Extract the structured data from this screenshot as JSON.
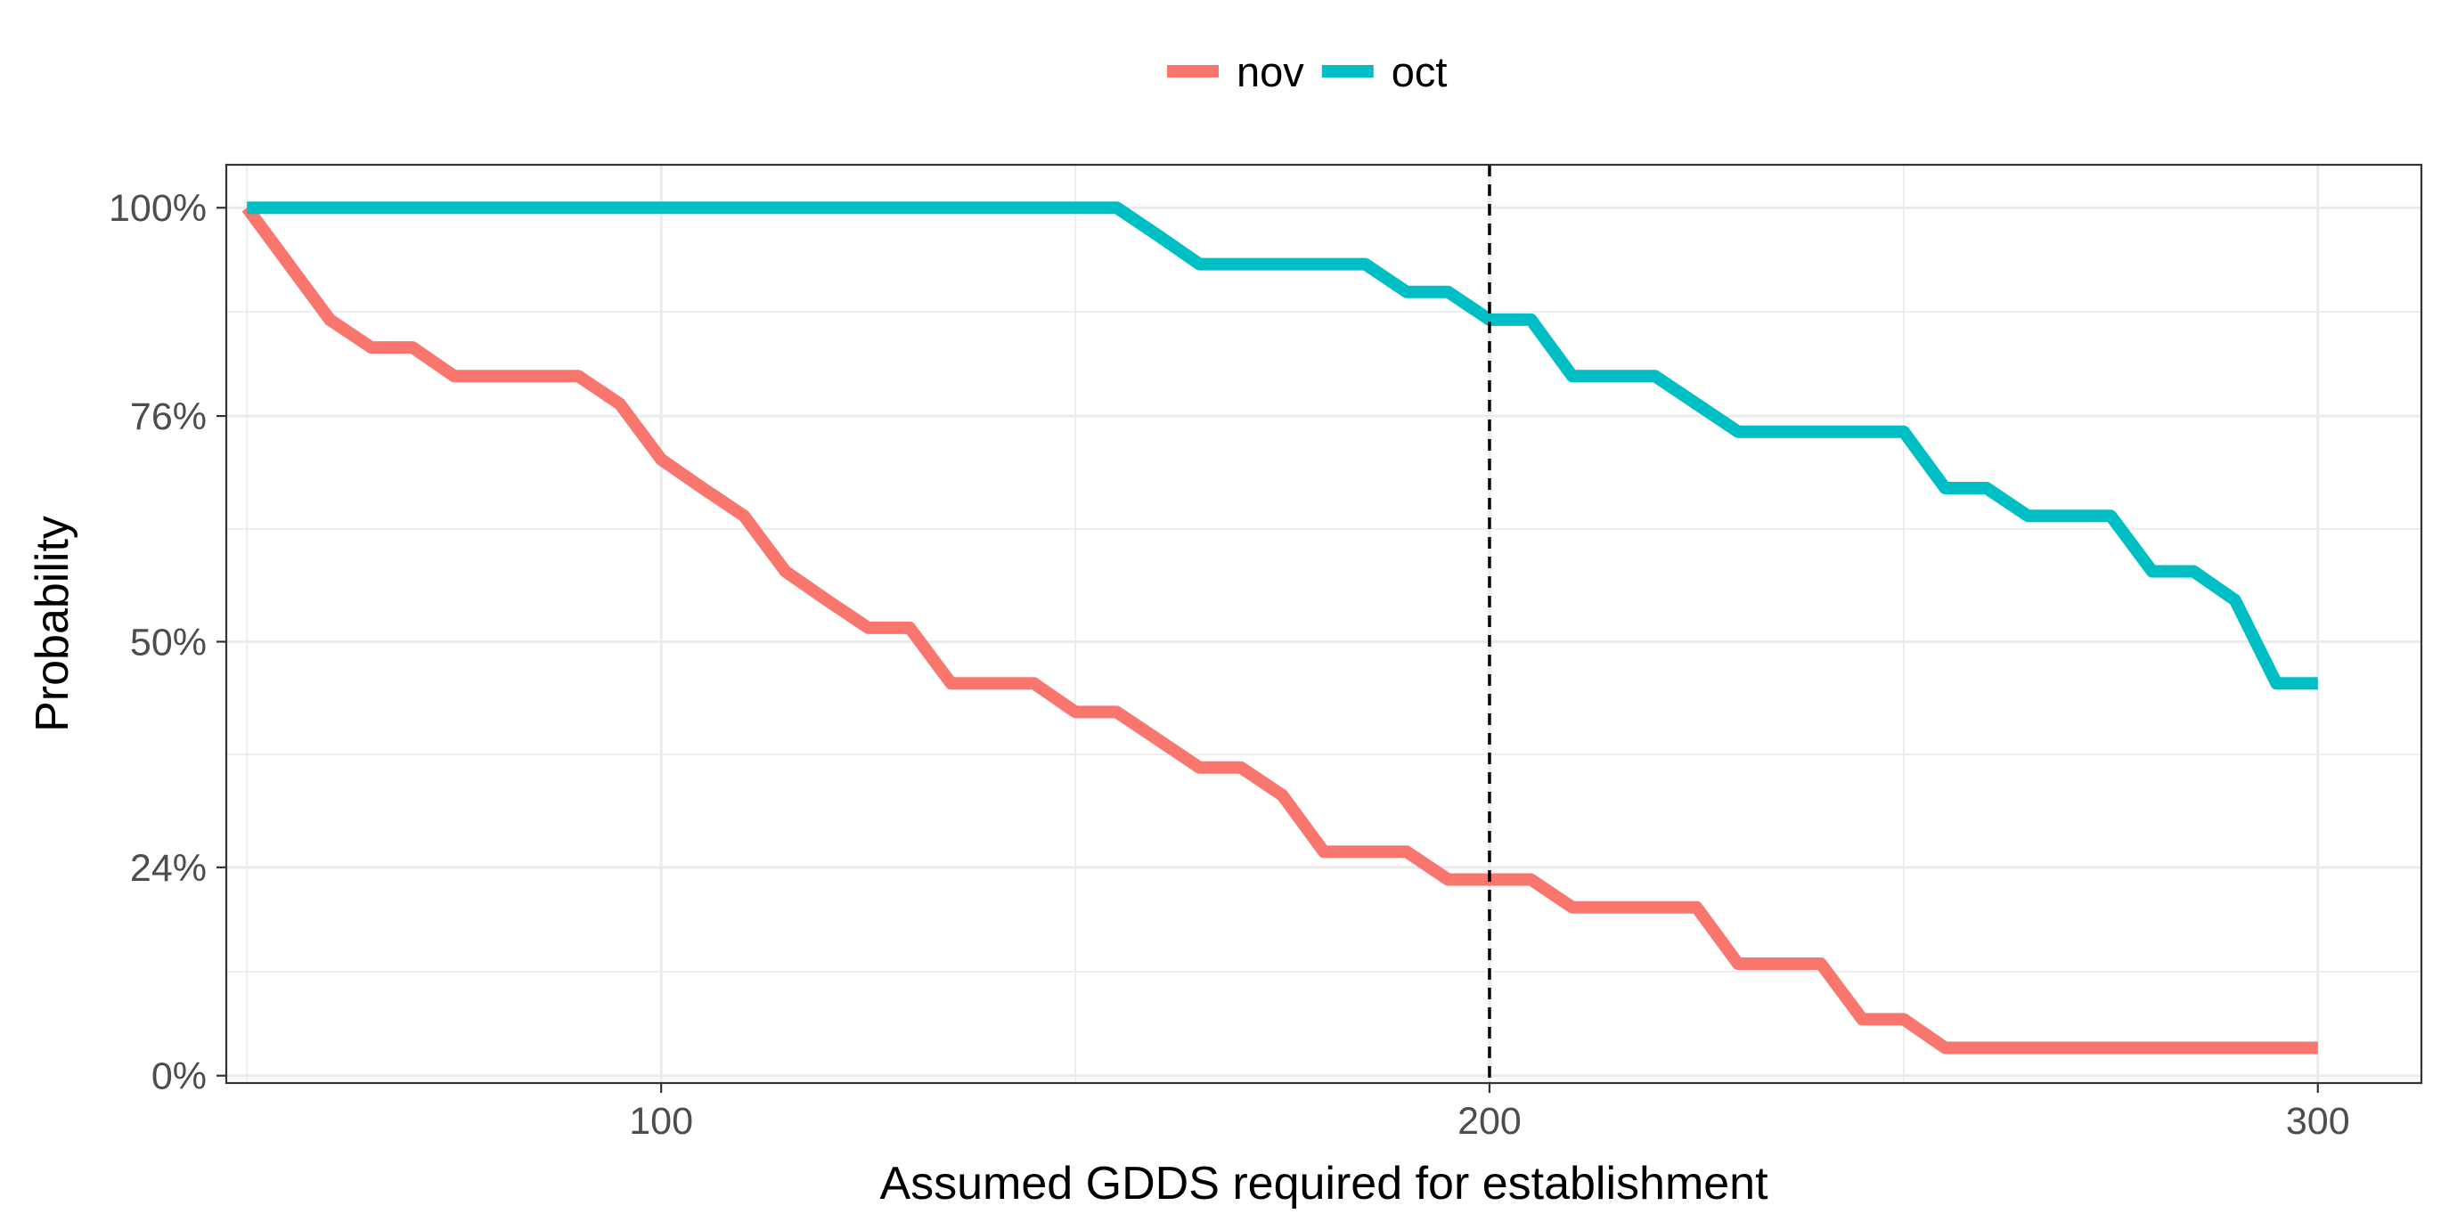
{
  "chart_data": {
    "type": "line",
    "xlabel": "Assumed GDDS required for establishment",
    "ylabel": "Probability",
    "xlim": [
      47.5,
      312.5
    ],
    "ylim": [
      -0.0085,
      1.0495
    ],
    "x_ticks": [
      100,
      200,
      300
    ],
    "x_tick_labels": [
      "100",
      "200",
      "300"
    ],
    "y_ticks": [
      0,
      0.24,
      0.5,
      0.76,
      1.0
    ],
    "y_tick_labels": [
      "0%",
      "24%",
      "50%",
      "76%",
      "100%"
    ],
    "y_minor_ticks": [
      0.12,
      0.37,
      0.63,
      0.88
    ],
    "x_minor_ticks": [
      50,
      150,
      250
    ],
    "grid": true,
    "legend_position": "top",
    "reference_line": {
      "x": 200,
      "style": "dashed",
      "color": "#000000"
    },
    "series": [
      {
        "name": "nov",
        "color": "#F8766D",
        "x": [
          50,
          60,
          65,
          70,
          75,
          80,
          85,
          90,
          95,
          100,
          105,
          110,
          115,
          120,
          125,
          130,
          135,
          140,
          145,
          150,
          155,
          160,
          165,
          170,
          175,
          180,
          185,
          190,
          195,
          200,
          205,
          210,
          215,
          220,
          225,
          230,
          235,
          240,
          245,
          250,
          255,
          260,
          265,
          270,
          275,
          280,
          285,
          290,
          295,
          300
        ],
        "y": [
          1.0,
          0.871,
          0.839,
          0.839,
          0.806,
          0.806,
          0.806,
          0.806,
          0.774,
          0.71,
          0.677,
          0.645,
          0.581,
          0.548,
          0.516,
          0.516,
          0.452,
          0.452,
          0.452,
          0.419,
          0.419,
          0.387,
          0.355,
          0.355,
          0.323,
          0.258,
          0.258,
          0.258,
          0.226,
          0.226,
          0.226,
          0.194,
          0.194,
          0.194,
          0.194,
          0.129,
          0.129,
          0.129,
          0.065,
          0.065,
          0.032,
          0.032,
          0.032,
          0.032,
          0.032,
          0.032,
          0.032,
          0.032,
          0.032,
          0.032
        ]
      },
      {
        "name": "oct",
        "color": "#00BFC4",
        "x": [
          50,
          150,
          155,
          160,
          165,
          170,
          175,
          180,
          185,
          190,
          195,
          200,
          205,
          210,
          215,
          220,
          225,
          230,
          235,
          240,
          245,
          250,
          255,
          260,
          265,
          270,
          275,
          280,
          285,
          290,
          295,
          300
        ],
        "y": [
          1.0,
          1.0,
          1.0,
          0.968,
          0.935,
          0.935,
          0.935,
          0.935,
          0.935,
          0.903,
          0.903,
          0.871,
          0.871,
          0.806,
          0.806,
          0.806,
          0.774,
          0.742,
          0.742,
          0.742,
          0.742,
          0.742,
          0.677,
          0.677,
          0.645,
          0.645,
          0.645,
          0.581,
          0.581,
          0.548,
          0.452,
          0.452
        ]
      }
    ]
  }
}
